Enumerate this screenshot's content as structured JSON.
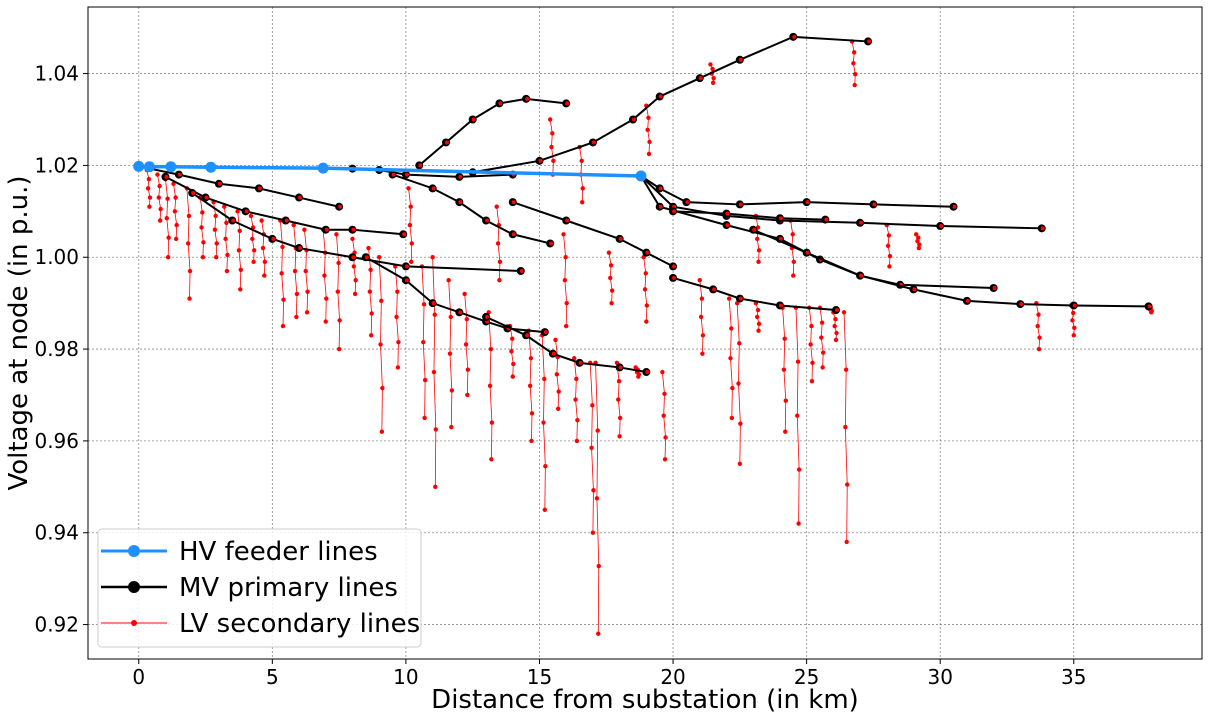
{
  "chart_data": {
    "type": "line",
    "title": "",
    "xlabel": "Distance from substation (in km)",
    "ylabel": "Voltage at node (in p.u.)",
    "xlim": [
      -1.9,
      39.8
    ],
    "ylim": [
      0.9125,
      1.0545
    ],
    "xticks": [
      "0",
      "5",
      "10",
      "15",
      "20",
      "25",
      "30",
      "35"
    ],
    "yticks": [
      "0.92",
      "0.94",
      "0.96",
      "0.98",
      "1.00",
      "1.02",
      "1.04"
    ],
    "grid": true,
    "legend": {
      "placement": "lower-left",
      "entries": [
        "HV feeder lines",
        "MV primary lines",
        "LV secondary lines"
      ]
    },
    "colors": {
      "hv": "#1e90ff",
      "mv": "#000000",
      "lv": "#ff0000"
    },
    "series": [
      {
        "name": "HV feeder lines",
        "values": [
          [
            0,
            1.0198
          ],
          [
            0.4,
            1.0197
          ],
          [
            1.2,
            1.0197
          ],
          [
            2.7,
            1.0196
          ],
          [
            6.9,
            1.0194
          ],
          [
            18.8,
            1.0177
          ]
        ]
      },
      {
        "name": "MV primary lines",
        "branches": [
          [
            [
              0,
              1.0198
            ],
            [
              1.5,
              1.018
            ],
            [
              3,
              1.016
            ],
            [
              4.5,
              1.015
            ],
            [
              6,
              1.013
            ],
            [
              7.5,
              1.011
            ]
          ],
          [
            [
              1,
              1.0175
            ],
            [
              2.5,
              1.013
            ],
            [
              4,
              1.01
            ],
            [
              5.5,
              1.008
            ],
            [
              7,
              1.006
            ],
            [
              8,
              1.006
            ],
            [
              9.9,
              1.005
            ]
          ],
          [
            [
              2,
              1.014
            ],
            [
              3.5,
              1.008
            ],
            [
              5,
              1.004
            ],
            [
              6,
              1.002
            ],
            [
              8,
              1.0
            ],
            [
              10,
              0.998
            ],
            [
              14.3,
              0.997
            ]
          ],
          [
            [
              6.9,
              1.0194
            ],
            [
              8,
              1.0193
            ],
            [
              9,
              1.019
            ],
            [
              10,
              1.018
            ],
            [
              12,
              1.0175
            ],
            [
              14,
              1.018
            ]
          ],
          [
            [
              8.5,
              1.0
            ],
            [
              10,
              0.995
            ],
            [
              11,
              0.99
            ],
            [
              12,
              0.988
            ],
            [
              13,
              0.986
            ],
            [
              13.8,
              0.9845
            ],
            [
              15.2,
              0.9837
            ]
          ],
          [
            [
              9.5,
              1.018
            ],
            [
              11,
              1.015
            ],
            [
              12,
              1.012
            ],
            [
              13,
              1.008
            ],
            [
              14,
              1.005
            ],
            [
              15.4,
              1.003
            ]
          ],
          [
            [
              10.5,
              1.02
            ],
            [
              11.5,
              1.025
            ],
            [
              12.5,
              1.03
            ],
            [
              13.5,
              1.0335
            ],
            [
              14.5,
              1.0345
            ],
            [
              16,
              1.0335
            ]
          ],
          [
            [
              13,
              0.987
            ],
            [
              14.5,
              0.983
            ],
            [
              15.5,
              0.979
            ],
            [
              16.5,
              0.977
            ],
            [
              18,
              0.976
            ],
            [
              19,
              0.975
            ]
          ],
          [
            [
              12.5,
              1.0185
            ],
            [
              15,
              1.021
            ],
            [
              17,
              1.025
            ],
            [
              18.5,
              1.03
            ],
            [
              19.5,
              1.035
            ],
            [
              21,
              1.039
            ],
            [
              22.5,
              1.043
            ],
            [
              24.5,
              1.048
            ],
            [
              27.3,
              1.047
            ]
          ],
          [
            [
              18.8,
              1.0177
            ],
            [
              19.5,
              1.015
            ],
            [
              20.5,
              1.012
            ],
            [
              22.5,
              1.0115
            ],
            [
              25,
              1.012
            ],
            [
              27.5,
              1.0115
            ],
            [
              30.5,
              1.011
            ]
          ],
          [
            [
              18.8,
              1.0177
            ],
            [
              20,
              1.011
            ],
            [
              22,
              1.009
            ],
            [
              24,
              1.008
            ],
            [
              27,
              1.0075
            ],
            [
              30,
              1.0068
            ],
            [
              33.8,
              1.0063
            ]
          ],
          [
            [
              18.8,
              1.0177
            ],
            [
              19.5,
              1.011
            ],
            [
              22,
              1.007
            ],
            [
              24,
              1.004
            ],
            [
              25.5,
              0.9995
            ],
            [
              27,
              0.996
            ],
            [
              28.5,
              0.994
            ],
            [
              32,
              0.9933
            ]
          ],
          [
            [
              23,
              1.006
            ],
            [
              25,
              1.001
            ],
            [
              27,
              0.996
            ],
            [
              29,
              0.993
            ],
            [
              31,
              0.9905
            ],
            [
              33,
              0.9898
            ],
            [
              35,
              0.9895
            ],
            [
              37.8,
              0.9893
            ]
          ],
          [
            [
              14,
              1.012
            ],
            [
              16,
              1.008
            ],
            [
              18,
              1.004
            ],
            [
              19,
              1.001
            ],
            [
              20,
              0.998
            ]
          ],
          [
            [
              20,
              0.9955
            ],
            [
              21.5,
              0.993
            ],
            [
              22.5,
              0.991
            ],
            [
              24,
              0.9895
            ],
            [
              26.1,
              0.9885
            ]
          ],
          [
            [
              20,
              1.01
            ],
            [
              22,
              1.0095
            ],
            [
              24,
              1.0085
            ],
            [
              25.7,
              1.0082
            ]
          ]
        ]
      },
      {
        "name": "LV secondary lines",
        "drops": [
          [
            0.3,
            1.019,
            1.011
          ],
          [
            0.7,
            1.018,
            1.008
          ],
          [
            1.0,
            1.017,
            1.0
          ],
          [
            1.3,
            1.016,
            1.004
          ],
          [
            1.8,
            1.015,
            0.991
          ],
          [
            2.3,
            1.013,
            1.0
          ],
          [
            2.8,
            1.012,
            1.0
          ],
          [
            3.2,
            1.011,
            0.997
          ],
          [
            3.7,
            1.01,
            0.993
          ],
          [
            4.2,
            1.009,
            0.999
          ],
          [
            4.6,
            1.008,
            0.996
          ],
          [
            5.3,
            1.008,
            0.985
          ],
          [
            5.8,
            1.007,
            0.987
          ],
          [
            6.2,
            1.006,
            0.988
          ],
          [
            6.9,
            1.006,
            0.986
          ],
          [
            7.4,
            1.005,
            0.98
          ],
          [
            8.0,
            1.004,
            0.992
          ],
          [
            8.6,
            1.002,
            0.983
          ],
          [
            9.0,
            1.0,
            0.962
          ],
          [
            9.6,
            0.998,
            0.976
          ],
          [
            10.1,
            1.015,
            0.999
          ],
          [
            10.6,
            0.998,
            0.965
          ],
          [
            11.0,
            1.0,
            0.95
          ],
          [
            11.6,
            0.995,
            0.963
          ],
          [
            12.2,
            0.992,
            0.97
          ],
          [
            13.1,
            0.988,
            0.956
          ],
          [
            13.9,
            0.985,
            0.974
          ],
          [
            14.6,
            0.984,
            0.96
          ],
          [
            15.1,
            0.983,
            0.945
          ],
          [
            15.6,
            0.982,
            0.967
          ],
          [
            16.3,
            0.978,
            0.96
          ],
          [
            17.1,
            0.977,
            0.918
          ],
          [
            16.9,
            0.977,
            0.94
          ],
          [
            17.9,
            0.977,
            0.961
          ],
          [
            18.6,
            0.976,
            0.974
          ],
          [
            19.6,
            0.975,
            0.956
          ],
          [
            13.4,
            1.011,
            0.995
          ],
          [
            15.9,
            1.005,
            0.985
          ],
          [
            17.6,
            1.001,
            0.99
          ],
          [
            18.9,
            1.0,
            0.986
          ],
          [
            21.0,
            0.995,
            0.979
          ],
          [
            22.1,
            0.991,
            0.965
          ],
          [
            22.4,
            0.99,
            0.955
          ],
          [
            23.1,
            0.99,
            0.984
          ],
          [
            24.1,
            0.989,
            0.962
          ],
          [
            24.6,
            0.989,
            0.942
          ],
          [
            25.1,
            0.989,
            0.973
          ],
          [
            26.4,
            0.988,
            0.938
          ],
          [
            25.5,
            0.989,
            0.976
          ],
          [
            26.0,
            0.988,
            0.982
          ],
          [
            24.4,
            1.008,
            0.996
          ],
          [
            23.1,
            1.009,
            0.999
          ],
          [
            28.0,
            1.007,
            0.998
          ],
          [
            29.1,
            1.005,
            1.002
          ],
          [
            33.6,
            0.99,
            0.98
          ],
          [
            34.9,
            0.9895,
            0.983
          ],
          [
            37.8,
            0.9893,
            0.988
          ],
          [
            26.7,
            1.047,
            1.0375
          ],
          [
            19.0,
            1.033,
            1.0225
          ],
          [
            21.4,
            1.042,
            1.038
          ],
          [
            15.4,
            1.03,
            1.018
          ],
          [
            16.5,
            1.024,
            1.012
          ]
        ]
      }
    ]
  }
}
